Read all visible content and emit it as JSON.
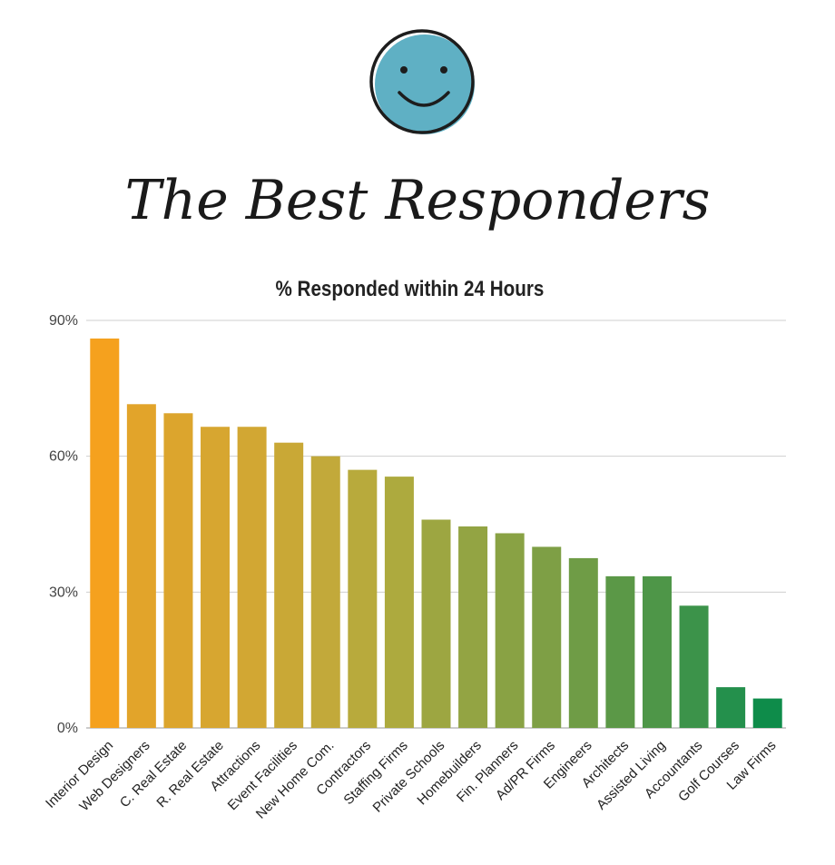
{
  "header": {
    "icon": "smiley-face-icon",
    "icon_color": "#5fb0c4",
    "title": "The Best Responders"
  },
  "chart_data": {
    "type": "bar",
    "title": "% Responded within 24 Hours",
    "xlabel": "",
    "ylabel": "",
    "ylim": [
      0,
      90
    ],
    "yticks": [
      0,
      30,
      60,
      90
    ],
    "ytick_labels": [
      "0%",
      "30%",
      "60%",
      "90%"
    ],
    "grid": true,
    "categories": [
      "Interior Design",
      "Web Designers",
      "C. Real Estate",
      "R. Real Estate",
      "Attractions",
      "Event Facilities",
      "New Home Com.",
      "Contractors",
      "Staffing Firms",
      "Private Schools",
      "Homebuilders",
      "Fin. Planners",
      "Ad/PR Firms",
      "Engineers",
      "Architects",
      "Assisted Living",
      "Accountants",
      "Golf Courses",
      "Law Firms"
    ],
    "values": [
      86,
      71.5,
      69.5,
      66.5,
      66.5,
      63,
      60,
      57,
      55.5,
      46,
      44.5,
      43,
      40,
      37.5,
      33.5,
      33.5,
      27,
      9,
      6.5
    ],
    "colors": [
      "#f5a11e",
      "#e2a42a",
      "#dca52d",
      "#d7a630",
      "#d2a733",
      "#c9a836",
      "#c2a93a",
      "#b8aa3c",
      "#adaa3e",
      "#9da641",
      "#93a443",
      "#89a244",
      "#7e9f45",
      "#6f9c46",
      "#5b9847",
      "#4e9648",
      "#3c934a",
      "#24904c",
      "#0e8c4a"
    ]
  }
}
